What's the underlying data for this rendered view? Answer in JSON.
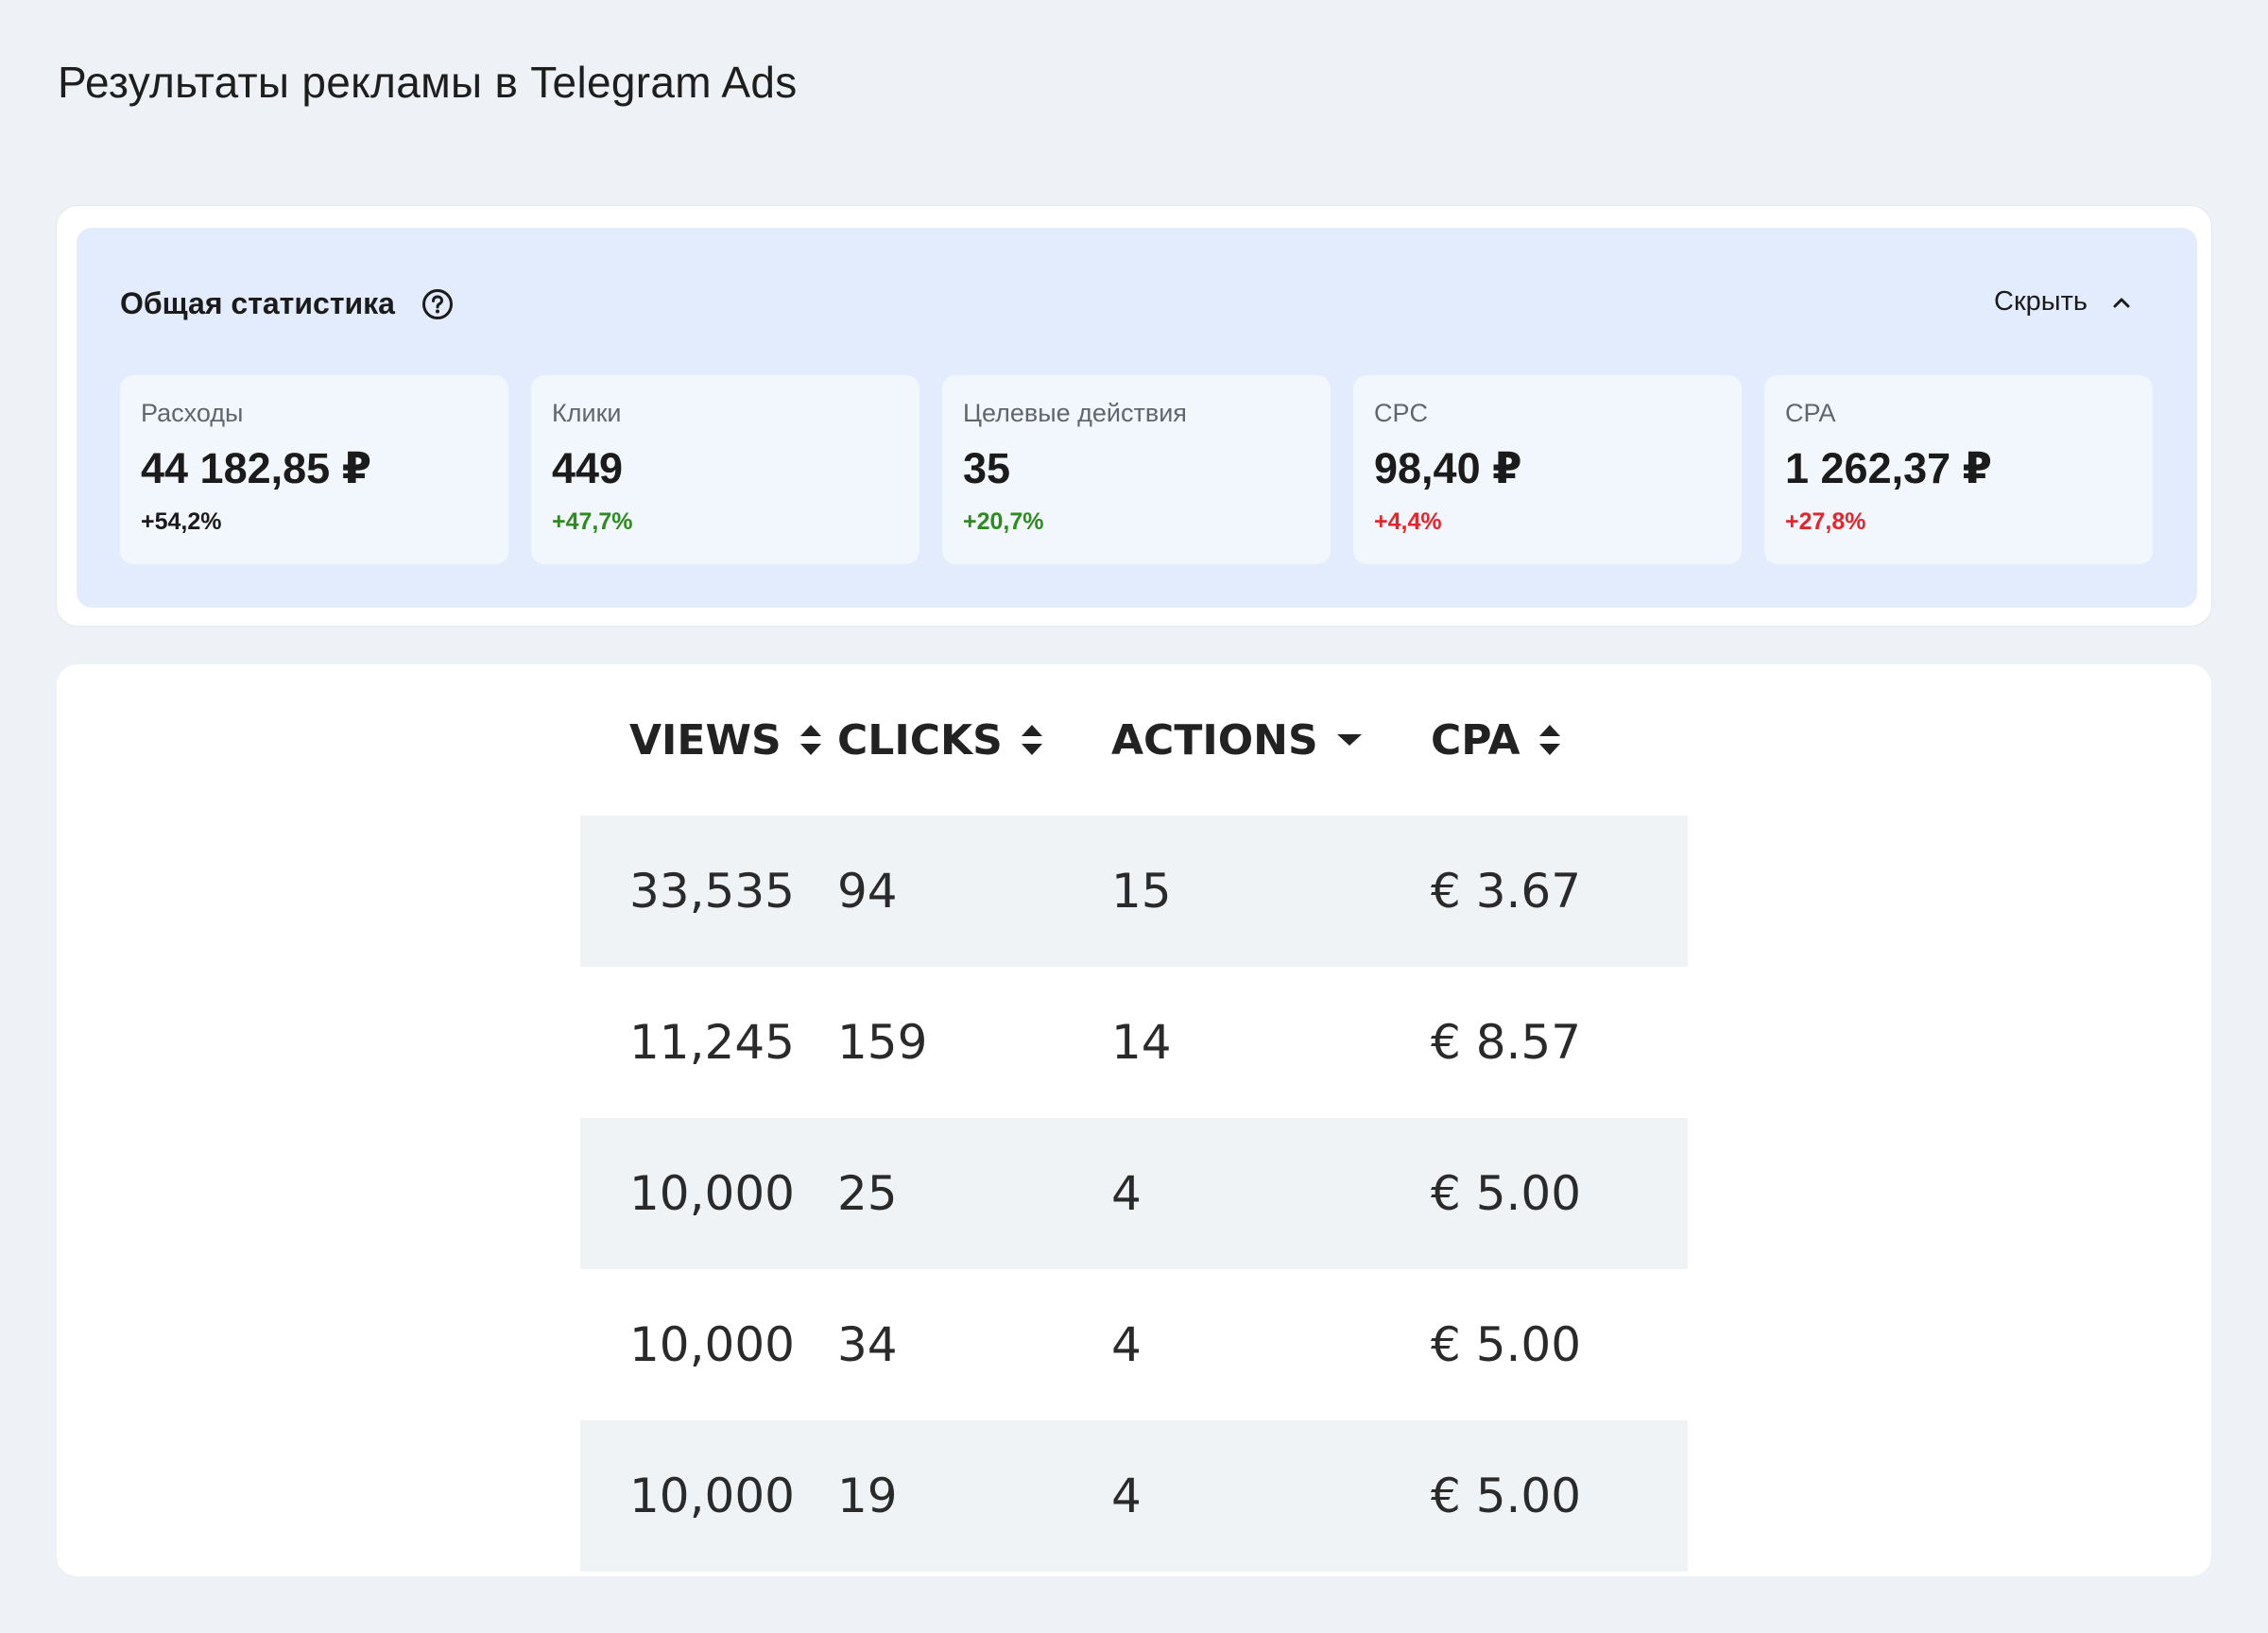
{
  "page": {
    "title": "Результаты рекламы в Telegram Ads"
  },
  "stats": {
    "title": "Общая статистика",
    "help_icon": "question-circle-icon",
    "hide_label": "Скрыть",
    "toggle_icon": "chevron-up-icon",
    "cards": [
      {
        "label": "Расходы",
        "value": "44 182,85 ₽",
        "delta": "+54,2%",
        "delta_color": "#1b1b1b"
      },
      {
        "label": "Клики",
        "value": "449",
        "delta": "+47,7%",
        "delta_color": "#2e8b1f"
      },
      {
        "label": "Целевые действия",
        "value": "35",
        "delta": "+20,7%",
        "delta_color": "#2e8b1f"
      },
      {
        "label": "CPC",
        "value": "98,40 ₽",
        "delta": "+4,4%",
        "delta_color": "#e5242b"
      },
      {
        "label": "CPA",
        "value": "1 262,37 ₽",
        "delta": "+27,8%",
        "delta_color": "#e5242b"
      }
    ]
  },
  "table": {
    "columns": [
      {
        "label": "VIEWS",
        "sort": "both"
      },
      {
        "label": "CLICKS",
        "sort": "both"
      },
      {
        "label": "ACTIONS",
        "sort": "desc"
      },
      {
        "label": "CPA",
        "sort": "both"
      }
    ],
    "rows": [
      [
        "33,535",
        "94",
        "15",
        "€ 3.67"
      ],
      [
        "11,245",
        "159",
        "14",
        "€ 8.57"
      ],
      [
        "10,000",
        "25",
        "4",
        "€ 5.00"
      ],
      [
        "10,000",
        "34",
        "4",
        "€ 5.00"
      ],
      [
        "10,000",
        "19",
        "4",
        "€ 5.00"
      ]
    ]
  }
}
